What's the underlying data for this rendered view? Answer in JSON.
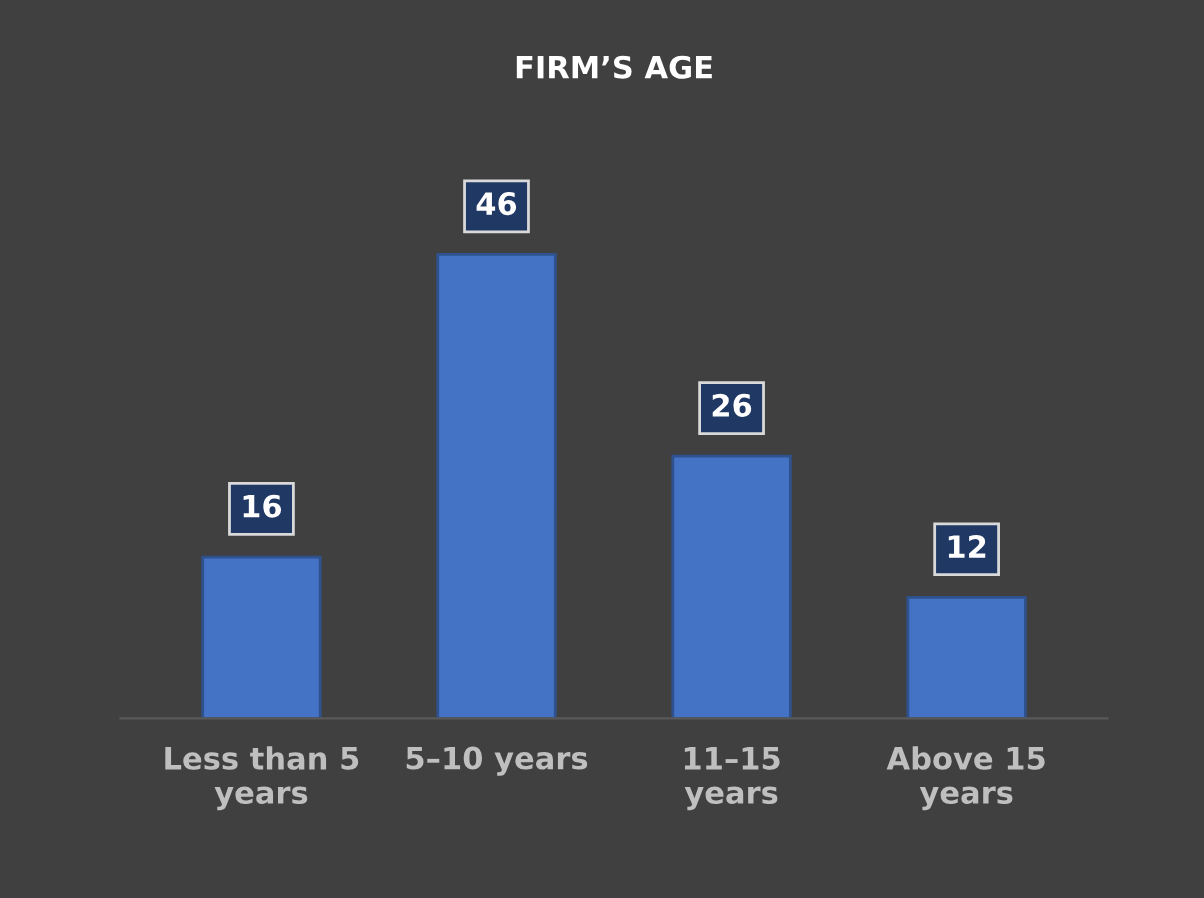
{
  "chart_data": {
    "type": "bar",
    "title": "FIRM’S AGE",
    "categories": [
      "Less than 5\nyears",
      "5–10 years",
      "11–15\nyears",
      "Above 15\nyears"
    ],
    "values": [
      16,
      46,
      26,
      12
    ],
    "color": "#4472c4",
    "data_labels": true,
    "grid": false,
    "legend": false
  }
}
